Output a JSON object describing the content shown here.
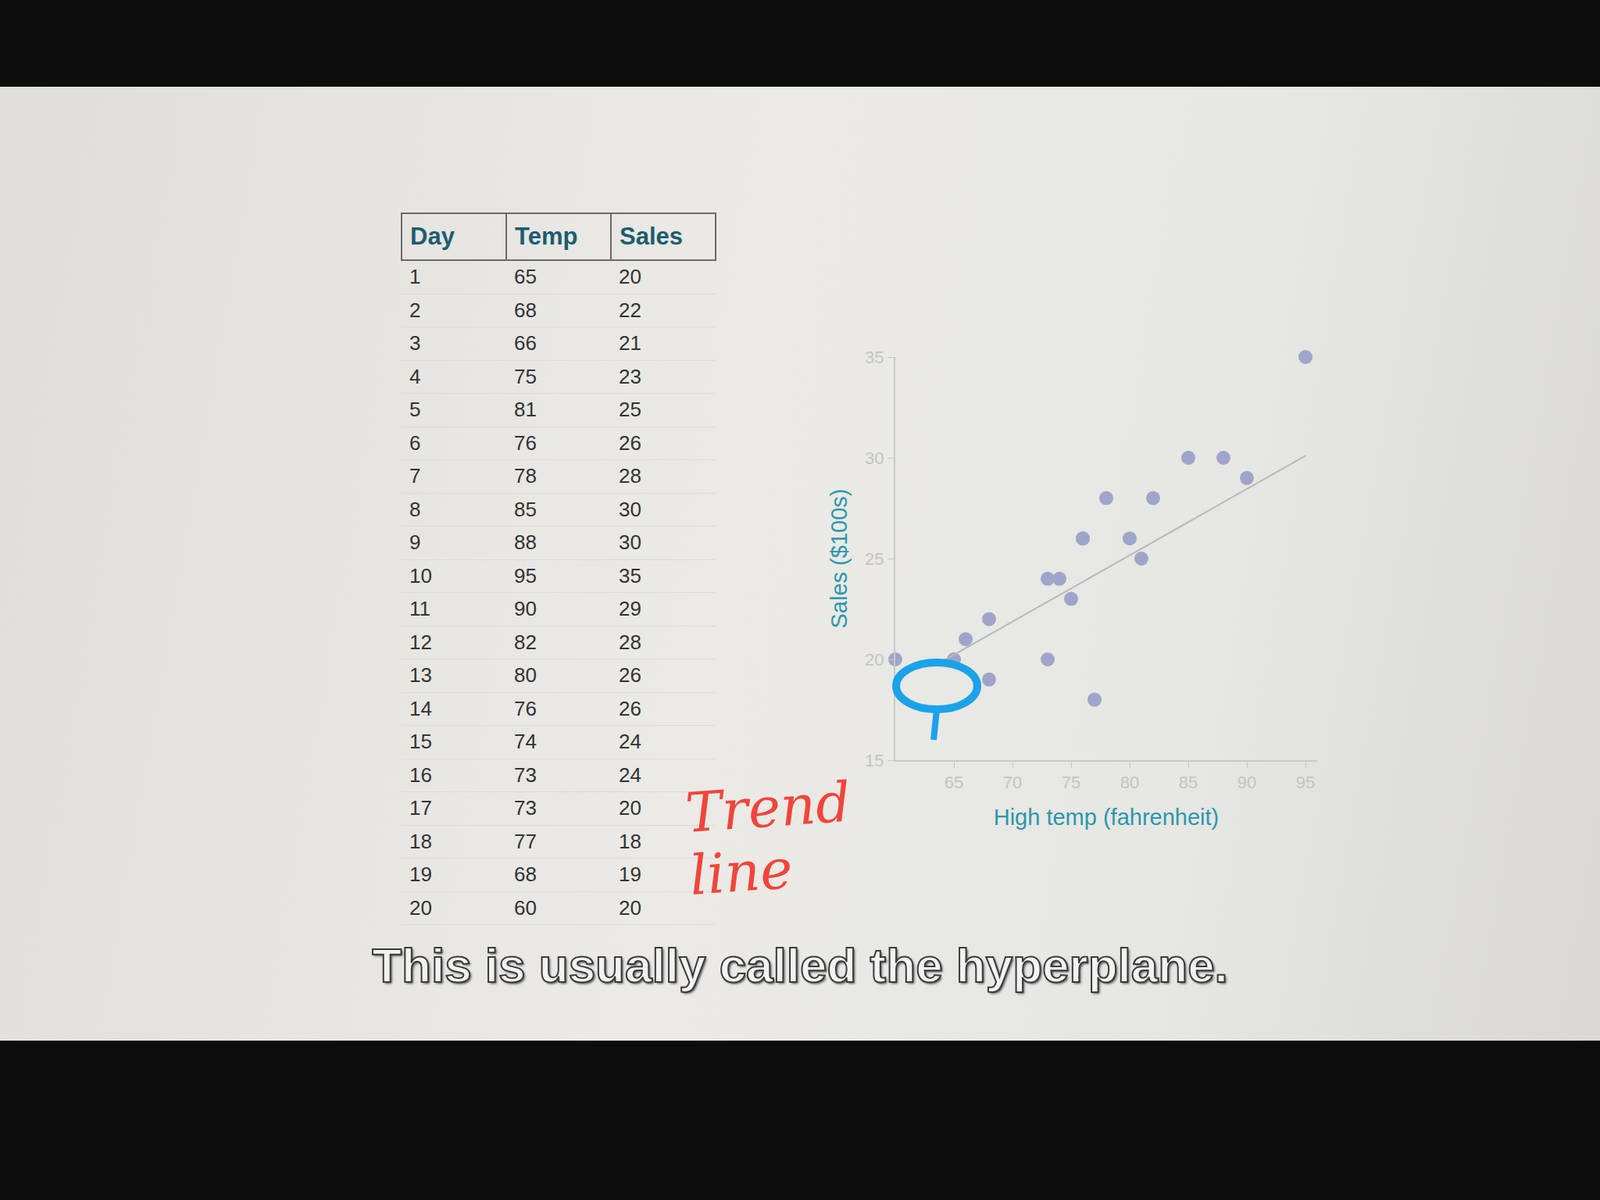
{
  "table": {
    "header": [
      "Day",
      "Temp",
      "Sales"
    ],
    "rows": [
      [
        1,
        65,
        20
      ],
      [
        2,
        68,
        22
      ],
      [
        3,
        66,
        21
      ],
      [
        4,
        75,
        23
      ],
      [
        5,
        81,
        25
      ],
      [
        6,
        76,
        26
      ],
      [
        7,
        78,
        28
      ],
      [
        8,
        85,
        30
      ],
      [
        9,
        88,
        30
      ],
      [
        10,
        95,
        35
      ],
      [
        11,
        90,
        29
      ],
      [
        12,
        82,
        28
      ],
      [
        13,
        80,
        26
      ],
      [
        14,
        76,
        26
      ],
      [
        15,
        74,
        24
      ],
      [
        16,
        73,
        24
      ],
      [
        17,
        73,
        20
      ],
      [
        18,
        77,
        18
      ],
      [
        19,
        68,
        19
      ],
      [
        20,
        60,
        20
      ]
    ]
  },
  "chart_data": {
    "type": "scatter",
    "x_label": "High temp (fahrenheit)",
    "y_label": "Sales ($100s)",
    "series": [
      {
        "type": "scatter",
        "color": "#9fa5ca",
        "marker": "circle",
        "x": [
          65,
          68,
          66,
          75,
          81,
          76,
          78,
          85,
          88,
          95,
          90,
          82,
          80,
          76,
          74,
          73,
          73,
          77,
          68,
          60
        ],
        "values": [
          20,
          22,
          21,
          23,
          25,
          26,
          28,
          30,
          30,
          35,
          29,
          28,
          26,
          26,
          24,
          24,
          20,
          18,
          19,
          20
        ]
      },
      {
        "type": "line",
        "color": "#b9b9b9",
        "line_style": "solid",
        "x": [
          64,
          95
        ],
        "values": [
          19.9,
          30.1
        ]
      }
    ],
    "xlim": [
      60,
      96
    ],
    "xticks": [
      65,
      70,
      75,
      80,
      85,
      90,
      95
    ],
    "ylim": [
      15,
      35
    ],
    "yticks": [
      15,
      20,
      25,
      30,
      35
    ],
    "grid": false,
    "annotations": [
      {
        "text": "Trend line",
        "color": "#f0453a"
      }
    ]
  },
  "caption": "This is usually called the hyperplane."
}
